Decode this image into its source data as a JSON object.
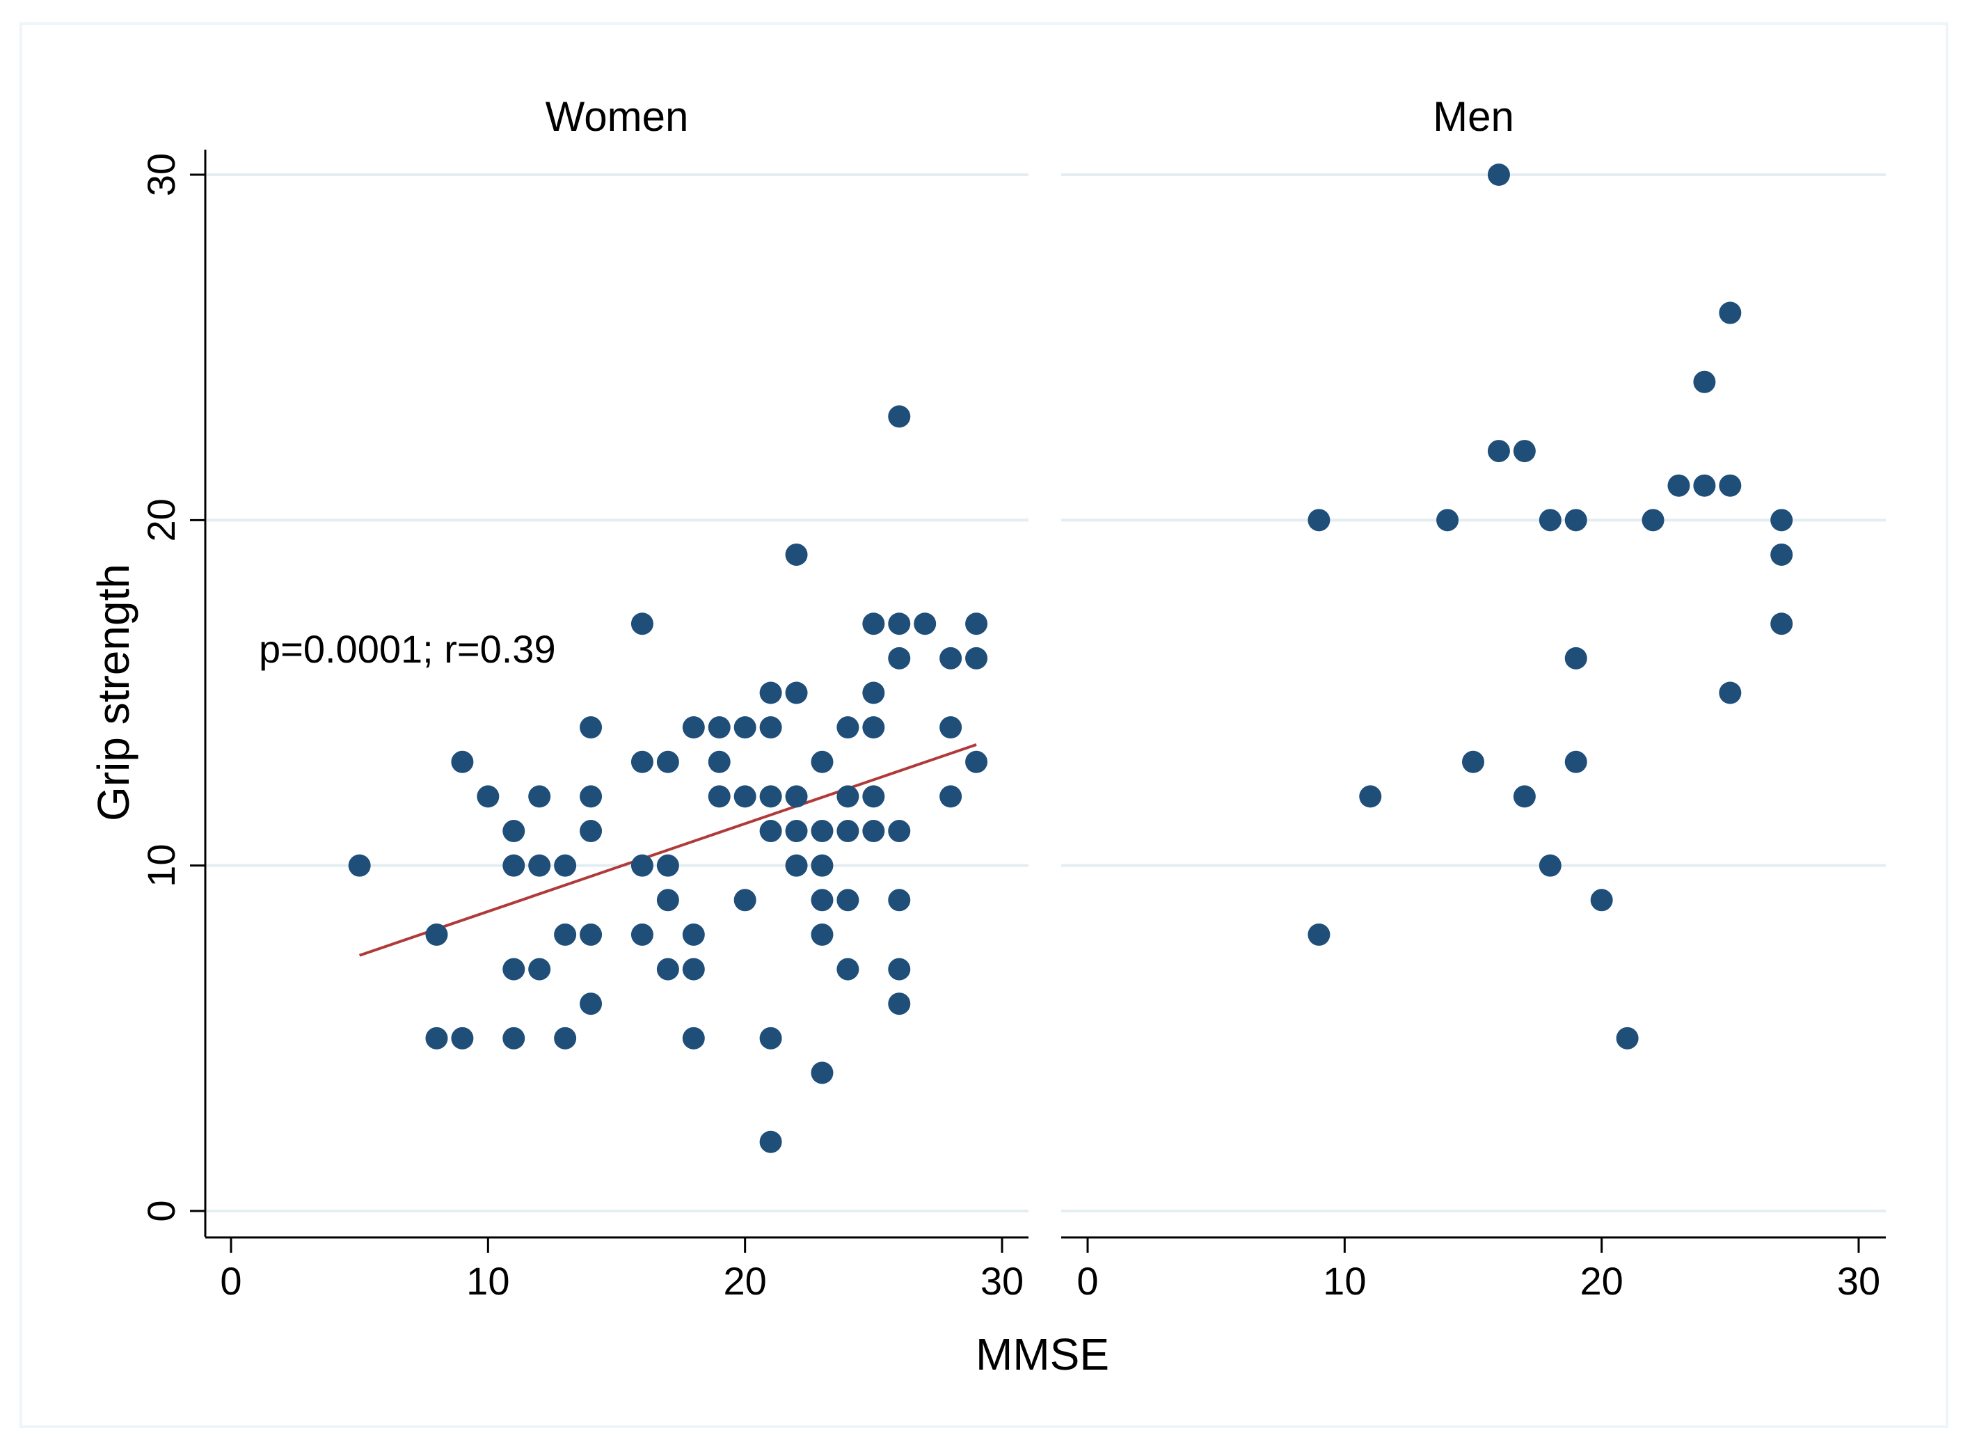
{
  "chart_data": {
    "type": "scatter",
    "xlabel": "MMSE",
    "ylabel": "Grip strength",
    "xlim": [
      0,
      30
    ],
    "ylim": [
      0,
      30
    ],
    "xticks": [
      0,
      10,
      20,
      30
    ],
    "yticks": [
      0,
      10,
      20,
      30
    ],
    "grid": true,
    "marker_color": "#1f4e79",
    "fit_color": "#b03a3a",
    "panels": [
      {
        "title": "Women",
        "annotation": "p=0.0001; r=0.39",
        "fit_line": {
          "x": [
            5,
            29
          ],
          "y": [
            7.4,
            13.5
          ]
        },
        "points": [
          [
            5,
            10
          ],
          [
            8,
            8
          ],
          [
            8,
            5
          ],
          [
            9,
            5
          ],
          [
            9,
            13
          ],
          [
            10,
            12
          ],
          [
            11,
            11
          ],
          [
            11,
            10
          ],
          [
            11,
            7
          ],
          [
            11,
            5
          ],
          [
            12,
            12
          ],
          [
            12,
            10
          ],
          [
            12,
            7
          ],
          [
            13,
            10
          ],
          [
            13,
            8
          ],
          [
            13,
            5
          ],
          [
            14,
            14
          ],
          [
            14,
            12
          ],
          [
            14,
            11
          ],
          [
            14,
            8
          ],
          [
            14,
            6
          ],
          [
            16,
            17
          ],
          [
            16,
            13
          ],
          [
            16,
            10
          ],
          [
            16,
            8
          ],
          [
            17,
            13
          ],
          [
            17,
            10
          ],
          [
            17,
            9
          ],
          [
            17,
            7
          ],
          [
            18,
            14
          ],
          [
            18,
            8
          ],
          [
            18,
            7
          ],
          [
            18,
            5
          ],
          [
            19,
            14
          ],
          [
            19,
            13
          ],
          [
            19,
            12
          ],
          [
            20,
            14
          ],
          [
            20,
            12
          ],
          [
            20,
            9
          ],
          [
            21,
            15
          ],
          [
            21,
            14
          ],
          [
            21,
            12
          ],
          [
            21,
            11
          ],
          [
            21,
            5
          ],
          [
            21,
            2
          ],
          [
            22,
            19
          ],
          [
            22,
            15
          ],
          [
            22,
            12
          ],
          [
            22,
            11
          ],
          [
            22,
            10
          ],
          [
            23,
            13
          ],
          [
            23,
            11
          ],
          [
            23,
            10
          ],
          [
            23,
            9
          ],
          [
            23,
            8
          ],
          [
            23,
            4
          ],
          [
            24,
            14
          ],
          [
            24,
            12
          ],
          [
            24,
            11
          ],
          [
            24,
            9
          ],
          [
            24,
            7
          ],
          [
            25,
            17
          ],
          [
            25,
            15
          ],
          [
            25,
            14
          ],
          [
            25,
            12
          ],
          [
            25,
            11
          ],
          [
            26,
            23
          ],
          [
            26,
            17
          ],
          [
            26,
            16
          ],
          [
            26,
            11
          ],
          [
            26,
            9
          ],
          [
            26,
            7
          ],
          [
            26,
            6
          ],
          [
            27,
            17
          ],
          [
            28,
            16
          ],
          [
            28,
            14
          ],
          [
            28,
            12
          ],
          [
            29,
            17
          ],
          [
            29,
            16
          ],
          [
            29,
            13
          ]
        ]
      },
      {
        "title": "Men",
        "annotation": "",
        "fit_line": null,
        "points": [
          [
            9,
            20
          ],
          [
            9,
            8
          ],
          [
            11,
            12
          ],
          [
            14,
            20
          ],
          [
            15,
            13
          ],
          [
            16,
            30
          ],
          [
            16,
            22
          ],
          [
            17,
            22
          ],
          [
            17,
            12
          ],
          [
            18,
            20
          ],
          [
            18,
            10
          ],
          [
            19,
            20
          ],
          [
            19,
            16
          ],
          [
            19,
            13
          ],
          [
            20,
            9
          ],
          [
            21,
            5
          ],
          [
            22,
            20
          ],
          [
            23,
            21
          ],
          [
            24,
            24
          ],
          [
            24,
            21
          ],
          [
            25,
            26
          ],
          [
            25,
            21
          ],
          [
            25,
            15
          ],
          [
            27,
            20
          ],
          [
            27,
            19
          ],
          [
            27,
            17
          ]
        ]
      }
    ]
  }
}
